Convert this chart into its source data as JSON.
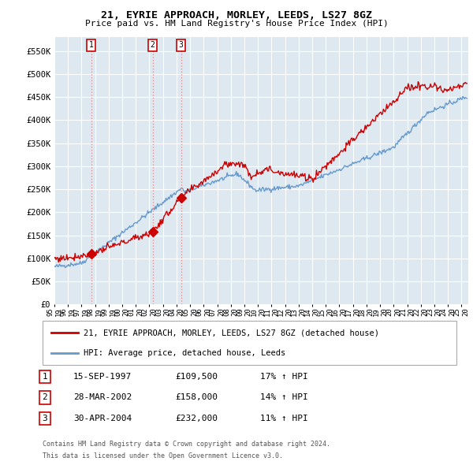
{
  "title": "21, EYRIE APPROACH, MORLEY, LEEDS, LS27 8GZ",
  "subtitle": "Price paid vs. HM Land Registry's House Price Index (HPI)",
  "legend_line1": "21, EYRIE APPROACH, MORLEY, LEEDS, LS27 8GZ (detached house)",
  "legend_line2": "HPI: Average price, detached house, Leeds",
  "sale_prices": [
    109500,
    158000,
    232000
  ],
  "sale_labels": [
    "1",
    "2",
    "3"
  ],
  "sale_year_floats": [
    1997.706,
    2002.239,
    2004.328
  ],
  "sale_label_dates": [
    "15-SEP-1997",
    "28-MAR-2002",
    "30-APR-2004"
  ],
  "sale_amounts": [
    "£109,500",
    "£158,000",
    "£232,000"
  ],
  "sale_pct": [
    "17% ↑ HPI",
    "14% ↑ HPI",
    "11% ↑ HPI"
  ],
  "footer_line1": "Contains HM Land Registry data © Crown copyright and database right 2024.",
  "footer_line2": "This data is licensed under the Open Government Licence v3.0.",
  "ylim_min": 0,
  "ylim_max": 580000,
  "yticks": [
    0,
    50000,
    100000,
    150000,
    200000,
    250000,
    300000,
    350000,
    400000,
    450000,
    500000,
    550000
  ],
  "ytick_labels": [
    "£0",
    "£50K",
    "£100K",
    "£150K",
    "£200K",
    "£250K",
    "£300K",
    "£350K",
    "£400K",
    "£450K",
    "£500K",
    "£550K"
  ],
  "red_line_color": "#cc0000",
  "blue_line_color": "#6699cc",
  "sale_dot_color": "#cc0000",
  "vline_color": "#ee8888",
  "plot_bg_color": "#dde8f0",
  "background_color": "#ffffff",
  "grid_color": "#ffffff",
  "table_border_color": "#cc0000",
  "legend_border_color": "#aaaaaa",
  "xlim_min": 1995.0,
  "xlim_max": 2025.5
}
